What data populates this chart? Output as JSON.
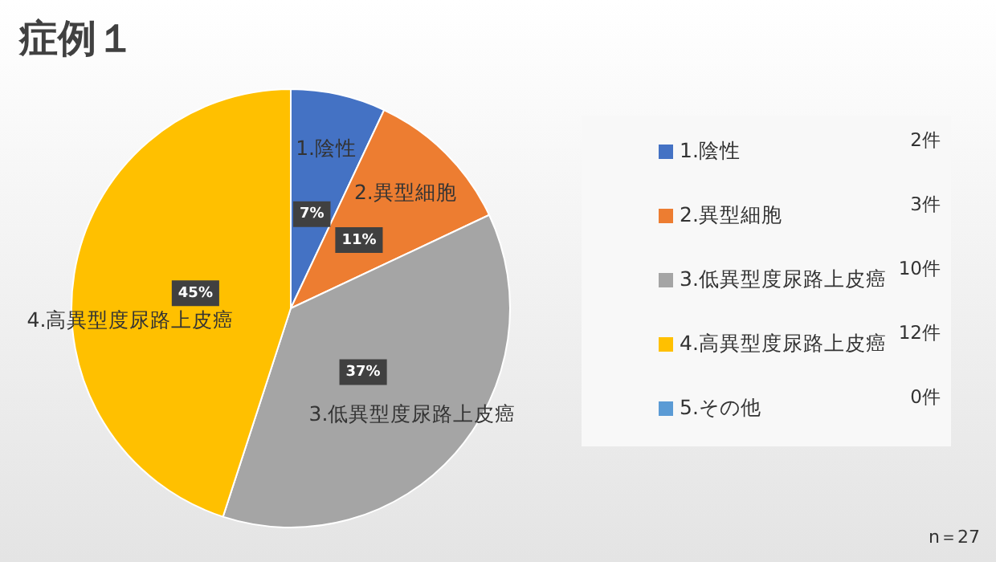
{
  "chart_data": {
    "type": "pie",
    "title": "症例１",
    "categories": [
      "1.陰性",
      "2.異型細胞",
      "3.低異型度尿路上皮癌",
      "4.高異型度尿路上皮癌",
      "5.その他"
    ],
    "values": [
      7,
      11,
      37,
      45,
      0
    ],
    "colors": [
      "#4472c4",
      "#ed7d31",
      "#a5a5a5",
      "#ffc000",
      "#5b9bd5"
    ],
    "value_labels": [
      "7%",
      "11%",
      "37%",
      "45%",
      null
    ],
    "legend": "right",
    "annotations": [
      "2件",
      "3件",
      "10件",
      "12件",
      "0件",
      "n＝27"
    ]
  }
}
